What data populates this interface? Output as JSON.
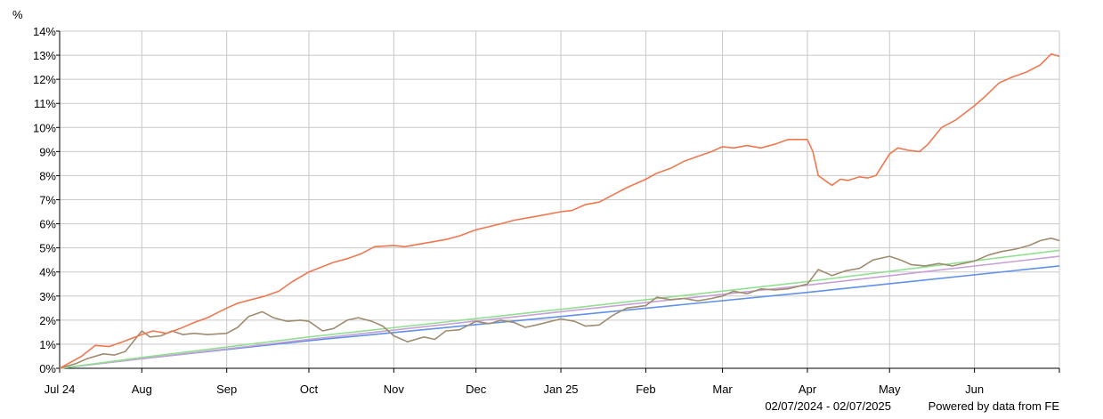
{
  "chart_data": {
    "type": "line",
    "ylabel": "%",
    "ylim": [
      0,
      14
    ],
    "yticks": [
      "0%",
      "1%",
      "2%",
      "3%",
      "4%",
      "5%",
      "6%",
      "7%",
      "8%",
      "9%",
      "10%",
      "11%",
      "12%",
      "13%",
      "14%"
    ],
    "xlim": [
      "2024-07-02",
      "2025-07-02"
    ],
    "xticks": [
      {
        "date": "2024-07-02",
        "label": "Jul 24"
      },
      {
        "date": "2024-08-01",
        "label": "Aug"
      },
      {
        "date": "2024-09-01",
        "label": "Sep"
      },
      {
        "date": "2024-10-01",
        "label": "Oct"
      },
      {
        "date": "2024-11-01",
        "label": "Nov"
      },
      {
        "date": "2024-12-01",
        "label": "Dec"
      },
      {
        "date": "2025-01-01",
        "label": "Jan 25"
      },
      {
        "date": "2025-02-01",
        "label": "Feb"
      },
      {
        "date": "2025-03-01",
        "label": "Mar"
      },
      {
        "date": "2025-04-01",
        "label": "Apr"
      },
      {
        "date": "2025-05-01",
        "label": "May"
      },
      {
        "date": "2025-06-01",
        "label": "Jun"
      }
    ],
    "grid": true,
    "legend": "none",
    "series": [
      {
        "color": "#f07850",
        "points": [
          [
            "2024-07-02",
            0
          ],
          [
            "2024-07-10",
            0.5
          ],
          [
            "2024-07-15",
            0.95
          ],
          [
            "2024-07-20",
            0.9
          ],
          [
            "2024-07-25",
            1.1
          ],
          [
            "2024-08-01",
            1.4
          ],
          [
            "2024-08-05",
            1.55
          ],
          [
            "2024-08-10",
            1.45
          ],
          [
            "2024-08-15",
            1.65
          ],
          [
            "2024-08-20",
            1.9
          ],
          [
            "2024-08-25",
            2.1
          ],
          [
            "2024-09-01",
            2.5
          ],
          [
            "2024-09-05",
            2.7
          ],
          [
            "2024-09-10",
            2.85
          ],
          [
            "2024-09-15",
            3.0
          ],
          [
            "2024-09-20",
            3.2
          ],
          [
            "2024-09-25",
            3.6
          ],
          [
            "2024-10-01",
            4.0
          ],
          [
            "2024-10-10",
            4.4
          ],
          [
            "2024-10-15",
            4.55
          ],
          [
            "2024-10-20",
            4.75
          ],
          [
            "2024-10-25",
            5.05
          ],
          [
            "2024-11-01",
            5.1
          ],
          [
            "2024-11-05",
            5.05
          ],
          [
            "2024-11-10",
            5.15
          ],
          [
            "2024-11-15",
            5.25
          ],
          [
            "2024-11-20",
            5.35
          ],
          [
            "2024-11-25",
            5.5
          ],
          [
            "2024-12-01",
            5.75
          ],
          [
            "2024-12-10",
            6.0
          ],
          [
            "2024-12-15",
            6.15
          ],
          [
            "2024-12-20",
            6.25
          ],
          [
            "2024-12-25",
            6.35
          ],
          [
            "2025-01-01",
            6.5
          ],
          [
            "2025-01-05",
            6.55
          ],
          [
            "2025-01-10",
            6.8
          ],
          [
            "2025-01-15",
            6.9
          ],
          [
            "2025-01-20",
            7.2
          ],
          [
            "2025-01-25",
            7.5
          ],
          [
            "2025-02-01",
            7.85
          ],
          [
            "2025-02-05",
            8.1
          ],
          [
            "2025-02-10",
            8.3
          ],
          [
            "2025-02-15",
            8.6
          ],
          [
            "2025-02-20",
            8.8
          ],
          [
            "2025-02-25",
            9.0
          ],
          [
            "2025-03-01",
            9.2
          ],
          [
            "2025-03-05",
            9.15
          ],
          [
            "2025-03-10",
            9.25
          ],
          [
            "2025-03-15",
            9.15
          ],
          [
            "2025-03-20",
            9.3
          ],
          [
            "2025-03-25",
            9.5
          ],
          [
            "2025-04-01",
            9.5
          ],
          [
            "2025-04-03",
            9.0
          ],
          [
            "2025-04-05",
            8.0
          ],
          [
            "2025-04-08",
            7.75
          ],
          [
            "2025-04-10",
            7.6
          ],
          [
            "2025-04-13",
            7.85
          ],
          [
            "2025-04-16",
            7.8
          ],
          [
            "2025-04-20",
            7.95
          ],
          [
            "2025-04-23",
            7.9
          ],
          [
            "2025-04-26",
            8.0
          ],
          [
            "2025-05-01",
            8.9
          ],
          [
            "2025-05-04",
            9.15
          ],
          [
            "2025-05-08",
            9.05
          ],
          [
            "2025-05-12",
            9.0
          ],
          [
            "2025-05-15",
            9.3
          ],
          [
            "2025-05-20",
            10.0
          ],
          [
            "2025-05-25",
            10.3
          ],
          [
            "2025-06-01",
            10.9
          ],
          [
            "2025-06-05",
            11.3
          ],
          [
            "2025-06-10",
            11.85
          ],
          [
            "2025-06-15",
            12.1
          ],
          [
            "2025-06-20",
            12.3
          ],
          [
            "2025-06-25",
            12.6
          ],
          [
            "2025-06-29",
            13.05
          ],
          [
            "2025-07-02",
            12.95
          ]
        ]
      },
      {
        "color": "#a08c70",
        "points": [
          [
            "2024-07-02",
            0
          ],
          [
            "2024-07-08",
            0.2
          ],
          [
            "2024-07-12",
            0.4
          ],
          [
            "2024-07-18",
            0.6
          ],
          [
            "2024-07-22",
            0.55
          ],
          [
            "2024-07-26",
            0.7
          ],
          [
            "2024-08-01",
            1.55
          ],
          [
            "2024-08-04",
            1.3
          ],
          [
            "2024-08-08",
            1.35
          ],
          [
            "2024-08-12",
            1.55
          ],
          [
            "2024-08-16",
            1.4
          ],
          [
            "2024-08-20",
            1.45
          ],
          [
            "2024-08-25",
            1.4
          ],
          [
            "2024-09-01",
            1.45
          ],
          [
            "2024-09-05",
            1.7
          ],
          [
            "2024-09-09",
            2.15
          ],
          [
            "2024-09-14",
            2.35
          ],
          [
            "2024-09-18",
            2.1
          ],
          [
            "2024-09-23",
            1.95
          ],
          [
            "2024-09-28",
            2.0
          ],
          [
            "2024-10-01",
            1.95
          ],
          [
            "2024-10-06",
            1.55
          ],
          [
            "2024-10-10",
            1.65
          ],
          [
            "2024-10-15",
            2.0
          ],
          [
            "2024-10-19",
            2.1
          ],
          [
            "2024-10-24",
            1.95
          ],
          [
            "2024-10-28",
            1.75
          ],
          [
            "2024-11-01",
            1.35
          ],
          [
            "2024-11-06",
            1.1
          ],
          [
            "2024-11-12",
            1.3
          ],
          [
            "2024-11-16",
            1.2
          ],
          [
            "2024-11-20",
            1.55
          ],
          [
            "2024-11-25",
            1.6
          ],
          [
            "2024-12-01",
            1.95
          ],
          [
            "2024-12-06",
            1.85
          ],
          [
            "2024-12-10",
            2.0
          ],
          [
            "2024-12-15",
            1.9
          ],
          [
            "2024-12-19",
            1.7
          ],
          [
            "2024-12-23",
            1.8
          ],
          [
            "2025-01-01",
            2.05
          ],
          [
            "2025-01-06",
            1.95
          ],
          [
            "2025-01-10",
            1.75
          ],
          [
            "2025-01-15",
            1.8
          ],
          [
            "2025-01-20",
            2.2
          ],
          [
            "2025-01-25",
            2.5
          ],
          [
            "2025-02-01",
            2.6
          ],
          [
            "2025-02-05",
            2.95
          ],
          [
            "2025-02-10",
            2.85
          ],
          [
            "2025-02-15",
            2.9
          ],
          [
            "2025-02-20",
            2.8
          ],
          [
            "2025-02-25",
            2.9
          ],
          [
            "2025-03-01",
            3.0
          ],
          [
            "2025-03-05",
            3.2
          ],
          [
            "2025-03-10",
            3.1
          ],
          [
            "2025-03-15",
            3.3
          ],
          [
            "2025-03-20",
            3.25
          ],
          [
            "2025-03-25",
            3.3
          ],
          [
            "2025-04-01",
            3.5
          ],
          [
            "2025-04-05",
            4.1
          ],
          [
            "2025-04-10",
            3.85
          ],
          [
            "2025-04-15",
            4.05
          ],
          [
            "2025-04-20",
            4.15
          ],
          [
            "2025-04-25",
            4.5
          ],
          [
            "2025-05-01",
            4.65
          ],
          [
            "2025-05-05",
            4.5
          ],
          [
            "2025-05-09",
            4.3
          ],
          [
            "2025-05-14",
            4.25
          ],
          [
            "2025-05-19",
            4.35
          ],
          [
            "2025-05-24",
            4.25
          ],
          [
            "2025-06-01",
            4.45
          ],
          [
            "2025-06-06",
            4.7
          ],
          [
            "2025-06-11",
            4.85
          ],
          [
            "2025-06-16",
            4.95
          ],
          [
            "2025-06-21",
            5.1
          ],
          [
            "2025-06-25",
            5.3
          ],
          [
            "2025-06-29",
            5.4
          ],
          [
            "2025-07-02",
            5.3
          ]
        ]
      },
      {
        "color": "#90e090",
        "points": [
          [
            "2024-07-02",
            0
          ],
          [
            "2024-08-01",
            0.45
          ],
          [
            "2024-10-01",
            1.3
          ],
          [
            "2025-01-01",
            2.45
          ],
          [
            "2025-04-01",
            3.6
          ],
          [
            "2025-07-02",
            4.9
          ]
        ]
      },
      {
        "color": "#c8a0d8",
        "points": [
          [
            "2024-07-02",
            0
          ],
          [
            "2024-08-01",
            0.4
          ],
          [
            "2024-10-01",
            1.2
          ],
          [
            "2025-01-01",
            2.35
          ],
          [
            "2025-04-01",
            3.45
          ],
          [
            "2025-07-02",
            4.65
          ]
        ]
      },
      {
        "color": "#6090e8",
        "points": [
          [
            "2024-07-02",
            0
          ],
          [
            "2024-08-01",
            0.4
          ],
          [
            "2024-10-01",
            1.15
          ],
          [
            "2025-01-01",
            2.15
          ],
          [
            "2025-04-01",
            3.15
          ],
          [
            "2025-07-02",
            4.25
          ]
        ]
      }
    ]
  },
  "footer": {
    "date_range": "02/07/2024 - 02/07/2025",
    "credit": "Powered by data from FE"
  }
}
